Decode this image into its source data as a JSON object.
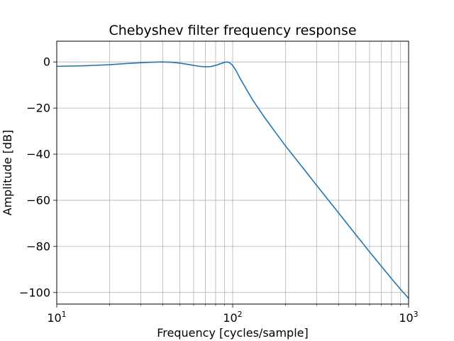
{
  "chart_data": {
    "type": "line",
    "title": "Chebyshev filter frequency response",
    "xlabel": "Frequency [cycles/sample]",
    "ylabel": "Amplitude [dB]",
    "xscale": "log",
    "xlim": [
      10,
      1000
    ],
    "ylim": [
      -105,
      9
    ],
    "grid": {
      "x": "major-and-minor",
      "y": "major"
    },
    "x_ticks": [
      {
        "value": 10,
        "base": "10",
        "exp": "1"
      },
      {
        "value": 100,
        "base": "10",
        "exp": "2"
      },
      {
        "value": 1000,
        "base": "10",
        "exp": "3"
      }
    ],
    "y_ticks": [
      {
        "value": 0,
        "label": "0"
      },
      {
        "value": -20,
        "label": "−20"
      },
      {
        "value": -40,
        "label": "−40"
      },
      {
        "value": -60,
        "label": "−60"
      },
      {
        "value": -80,
        "label": "−80"
      },
      {
        "value": -100,
        "label": "−100"
      }
    ],
    "line_color": "#1f77b4",
    "series": [
      {
        "x": [
          10,
          15,
          20,
          25,
          30,
          35,
          40,
          45,
          50,
          55,
          60,
          65,
          70,
          75,
          80,
          85,
          90,
          93,
          96,
          100,
          105,
          110,
          120,
          130,
          150,
          175,
          200,
          250,
          300,
          400,
          500,
          600,
          700,
          800,
          900,
          1000
        ],
        "y": [
          -1.9,
          -1.6,
          -1.2,
          -0.7,
          -0.35,
          -0.1,
          0.0,
          -0.15,
          -0.5,
          -1.0,
          -1.5,
          -1.9,
          -2.1,
          -2.0,
          -1.5,
          -0.8,
          -0.15,
          0.0,
          -0.3,
          -1.5,
          -4.0,
          -7.0,
          -12.0,
          -16.5,
          -23.5,
          -30.5,
          -36.5,
          -45.8,
          -53.5,
          -65.5,
          -74.8,
          -82.4,
          -88.6,
          -94.0,
          -98.6,
          -102.5
        ]
      }
    ]
  }
}
